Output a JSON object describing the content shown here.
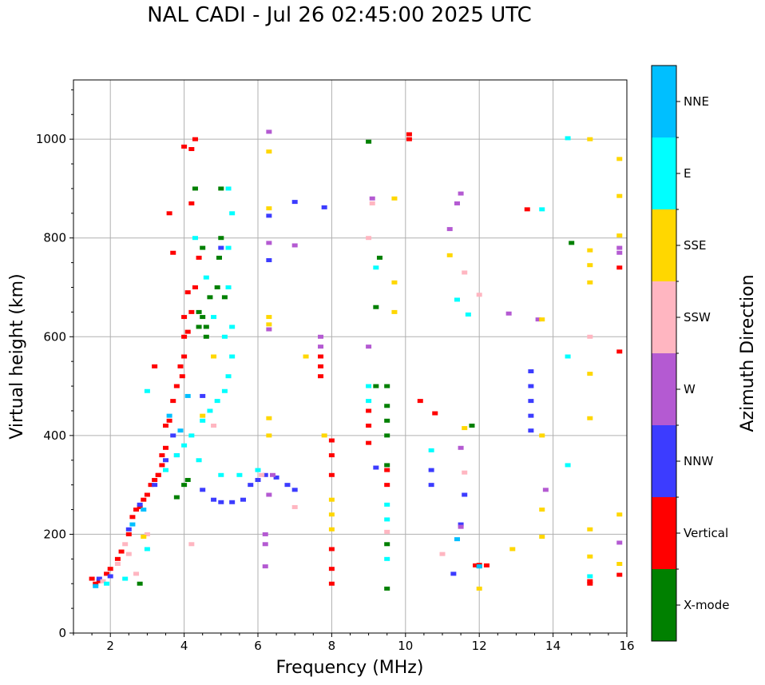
{
  "chart_data": {
    "type": "scatter",
    "title": "NAL CADI - Jul 26 02:45:00 2025 UTC",
    "xlabel": "Frequency (MHz)",
    "ylabel": "Virtual height (km)",
    "xlim": [
      1,
      16
    ],
    "ylim": [
      0,
      1120
    ],
    "xticks": [
      2,
      4,
      6,
      8,
      10,
      12,
      14,
      16
    ],
    "yticks": [
      0,
      200,
      400,
      600,
      800,
      1000
    ],
    "grid": true,
    "colorbar": {
      "label": "Azimuth Direction",
      "categories": [
        {
          "name": "X-mode",
          "color": "#008000"
        },
        {
          "name": "Vertical",
          "color": "#ff0000"
        },
        {
          "name": "NNW",
          "color": "#3c3cff"
        },
        {
          "name": "W",
          "color": "#b45ad2"
        },
        {
          "name": "SSW",
          "color": "#ffb6c1"
        },
        {
          "name": "SSE",
          "color": "#ffd700"
        },
        {
          "name": "E",
          "color": "#00ffff"
        },
        {
          "name": "NNE",
          "color": "#00bfff"
        }
      ]
    },
    "series": [
      {
        "name": "Vertical",
        "points": [
          [
            1.5,
            110
          ],
          [
            1.6,
            100
          ],
          [
            1.7,
            105
          ],
          [
            1.9,
            120
          ],
          [
            2.0,
            130
          ],
          [
            2.2,
            150
          ],
          [
            2.3,
            165
          ],
          [
            2.5,
            200
          ],
          [
            2.6,
            235
          ],
          [
            2.7,
            250
          ],
          [
            2.8,
            255
          ],
          [
            2.9,
            270
          ],
          [
            3.0,
            280
          ],
          [
            3.1,
            300
          ],
          [
            3.2,
            310
          ],
          [
            3.3,
            320
          ],
          [
            3.4,
            340
          ],
          [
            3.5,
            375
          ],
          [
            3.5,
            420
          ],
          [
            3.6,
            430
          ],
          [
            3.7,
            470
          ],
          [
            3.8,
            500
          ],
          [
            3.9,
            540
          ],
          [
            4.0,
            560
          ],
          [
            4.0,
            640
          ],
          [
            4.1,
            690
          ],
          [
            4.2,
            650
          ],
          [
            4.1,
            610
          ],
          [
            4.3,
            700
          ],
          [
            4.4,
            760
          ],
          [
            4.0,
            600
          ],
          [
            3.95,
            520
          ],
          [
            4.2,
            980
          ],
          [
            4.3,
            1000
          ],
          [
            4.2,
            870
          ],
          [
            3.6,
            850
          ],
          [
            3.7,
            770
          ],
          [
            3.3,
            320
          ],
          [
            3.4,
            360
          ],
          [
            3.2,
            540
          ],
          [
            8.0,
            100
          ],
          [
            8.0,
            130
          ],
          [
            8.0,
            170
          ],
          [
            8.0,
            320
          ],
          [
            8.0,
            360
          ],
          [
            8.0,
            390
          ],
          [
            7.7,
            520
          ],
          [
            7.7,
            560
          ],
          [
            7.7,
            540
          ],
          [
            9.0,
            385
          ],
          [
            9.0,
            420
          ],
          [
            9.0,
            450
          ],
          [
            9.5,
            300
          ],
          [
            9.5,
            330
          ],
          [
            10.1,
            1000
          ],
          [
            10.1,
            1010
          ],
          [
            10.4,
            470
          ],
          [
            10.8,
            445
          ],
          [
            12.0,
            138
          ],
          [
            11.9,
            137
          ],
          [
            12.2,
            137
          ],
          [
            13.3,
            858
          ],
          [
            15.0,
            100
          ],
          [
            15.0,
            105
          ],
          [
            15.8,
            118
          ],
          [
            15.8,
            570
          ],
          [
            15.8,
            740
          ],
          [
            4.0,
            985
          ]
        ]
      },
      {
        "name": "X-mode",
        "points": [
          [
            2.8,
            100
          ],
          [
            3.8,
            275
          ],
          [
            4.1,
            310
          ],
          [
            4.5,
            640
          ],
          [
            4.6,
            620
          ],
          [
            4.4,
            650
          ],
          [
            4.7,
            680
          ],
          [
            4.9,
            700
          ],
          [
            4.95,
            760
          ],
          [
            5.0,
            800
          ],
          [
            4.5,
            780
          ],
          [
            4.3,
            900
          ],
          [
            4.0,
            300
          ],
          [
            5.0,
            900
          ],
          [
            9.5,
            90
          ],
          [
            9.5,
            180
          ],
          [
            9.5,
            340
          ],
          [
            9.5,
            400
          ],
          [
            9.5,
            430
          ],
          [
            9.5,
            460
          ],
          [
            9.5,
            500
          ],
          [
            9.2,
            500
          ],
          [
            9.2,
            660
          ],
          [
            9.0,
            995
          ],
          [
            9.3,
            760
          ],
          [
            11.8,
            420
          ],
          [
            12.0,
            135
          ],
          [
            14.5,
            790
          ],
          [
            4.4,
            620
          ],
          [
            4.6,
            600
          ],
          [
            5.1,
            680
          ]
        ]
      },
      {
        "name": "NNW",
        "points": [
          [
            1.7,
            110
          ],
          [
            2.0,
            115
          ],
          [
            2.5,
            210
          ],
          [
            2.8,
            260
          ],
          [
            3.2,
            300
          ],
          [
            3.5,
            350
          ],
          [
            3.7,
            400
          ],
          [
            3.8,
            360
          ],
          [
            4.5,
            290
          ],
          [
            4.8,
            270
          ],
          [
            5.0,
            265
          ],
          [
            5.3,
            265
          ],
          [
            5.6,
            270
          ],
          [
            5.8,
            300
          ],
          [
            6.0,
            310
          ],
          [
            6.2,
            320
          ],
          [
            6.5,
            315
          ],
          [
            6.8,
            300
          ],
          [
            7.0,
            290
          ],
          [
            6.3,
            845
          ],
          [
            6.3,
            755
          ],
          [
            7.0,
            873
          ],
          [
            7.8,
            862
          ],
          [
            9.2,
            335
          ],
          [
            10.7,
            300
          ],
          [
            10.7,
            330
          ],
          [
            11.3,
            120
          ],
          [
            11.5,
            220
          ],
          [
            11.6,
            280
          ],
          [
            13.4,
            410
          ],
          [
            13.4,
            440
          ],
          [
            13.4,
            470
          ],
          [
            13.4,
            500
          ],
          [
            13.4,
            530
          ],
          [
            5.0,
            780
          ],
          [
            4.5,
            480
          ]
        ]
      },
      {
        "name": "W",
        "points": [
          [
            6.2,
            180
          ],
          [
            6.2,
            200
          ],
          [
            6.2,
            135
          ],
          [
            6.3,
            280
          ],
          [
            6.4,
            320
          ],
          [
            6.3,
            615
          ],
          [
            6.3,
            790
          ],
          [
            7.0,
            785
          ],
          [
            7.7,
            580
          ],
          [
            7.7,
            600
          ],
          [
            9.0,
            580
          ],
          [
            9.1,
            880
          ],
          [
            11.4,
            870
          ],
          [
            11.5,
            890
          ],
          [
            11.5,
            375
          ],
          [
            11.5,
            215
          ],
          [
            12.8,
            647
          ],
          [
            13.6,
            635
          ],
          [
            13.8,
            290
          ],
          [
            15.8,
            770
          ],
          [
            15.8,
            780
          ],
          [
            15.8,
            183
          ],
          [
            6.3,
            1015
          ],
          [
            11.2,
            818
          ]
        ]
      },
      {
        "name": "SSW",
        "points": [
          [
            1.8,
            105
          ],
          [
            2.2,
            140
          ],
          [
            2.4,
            180
          ],
          [
            2.7,
            120
          ],
          [
            3.0,
            200
          ],
          [
            2.5,
            160
          ],
          [
            9.0,
            800
          ],
          [
            9.1,
            870
          ],
          [
            9.5,
            205
          ],
          [
            11.0,
            160
          ],
          [
            11.6,
            730
          ],
          [
            11.6,
            325
          ],
          [
            12.0,
            685
          ],
          [
            15.0,
            600
          ],
          [
            7.0,
            255
          ],
          [
            6.1,
            320
          ],
          [
            4.8,
            420
          ],
          [
            4.2,
            180
          ]
        ]
      },
      {
        "name": "SSE",
        "points": [
          [
            2.9,
            195
          ],
          [
            6.3,
            975
          ],
          [
            6.3,
            860
          ],
          [
            6.3,
            625
          ],
          [
            6.3,
            640
          ],
          [
            6.3,
            435
          ],
          [
            6.3,
            400
          ],
          [
            7.3,
            560
          ],
          [
            7.8,
            400
          ],
          [
            8.0,
            240
          ],
          [
            8.0,
            270
          ],
          [
            8.0,
            210
          ],
          [
            9.7,
            880
          ],
          [
            9.7,
            710
          ],
          [
            9.7,
            650
          ],
          [
            11.2,
            765
          ],
          [
            11.6,
            415
          ],
          [
            12.0,
            90
          ],
          [
            12.9,
            170
          ],
          [
            13.7,
            195
          ],
          [
            13.7,
            250
          ],
          [
            13.7,
            400
          ],
          [
            13.7,
            635
          ],
          [
            15.0,
            1000
          ],
          [
            15.0,
            775
          ],
          [
            15.0,
            745
          ],
          [
            15.0,
            710
          ],
          [
            15.0,
            525
          ],
          [
            15.0,
            435
          ],
          [
            15.0,
            210
          ],
          [
            15.0,
            155
          ],
          [
            15.8,
            960
          ],
          [
            15.8,
            885
          ],
          [
            15.8,
            805
          ],
          [
            15.8,
            240
          ],
          [
            15.8,
            140
          ],
          [
            4.5,
            440
          ],
          [
            4.8,
            560
          ]
        ]
      },
      {
        "name": "E",
        "points": [
          [
            1.9,
            100
          ],
          [
            2.4,
            110
          ],
          [
            3.0,
            170
          ],
          [
            3.5,
            330
          ],
          [
            3.8,
            360
          ],
          [
            4.0,
            380
          ],
          [
            4.2,
            400
          ],
          [
            4.5,
            430
          ],
          [
            4.7,
            450
          ],
          [
            4.9,
            470
          ],
          [
            5.1,
            490
          ],
          [
            5.2,
            520
          ],
          [
            5.3,
            560
          ],
          [
            5.3,
            620
          ],
          [
            5.2,
            700
          ],
          [
            5.2,
            780
          ],
          [
            5.3,
            850
          ],
          [
            5.2,
            900
          ],
          [
            4.6,
            720
          ],
          [
            4.8,
            640
          ],
          [
            5.1,
            600
          ],
          [
            4.3,
            800
          ],
          [
            5.0,
            320
          ],
          [
            5.5,
            320
          ],
          [
            6.0,
            330
          ],
          [
            9.0,
            470
          ],
          [
            9.0,
            500
          ],
          [
            9.2,
            740
          ],
          [
            9.5,
            230
          ],
          [
            9.5,
            260
          ],
          [
            9.5,
            150
          ],
          [
            10.7,
            370
          ],
          [
            11.4,
            675
          ],
          [
            11.7,
            645
          ],
          [
            13.7,
            858
          ],
          [
            14.4,
            1002
          ],
          [
            14.4,
            560
          ],
          [
            14.4,
            340
          ],
          [
            15.0,
            115
          ],
          [
            3.0,
            490
          ],
          [
            4.4,
            350
          ]
        ]
      },
      {
        "name": "NNE",
        "points": [
          [
            1.6,
            95
          ],
          [
            2.6,
            220
          ],
          [
            2.9,
            250
          ],
          [
            3.6,
            440
          ],
          [
            3.9,
            410
          ],
          [
            4.1,
            480
          ],
          [
            11.4,
            190
          ],
          [
            12.0,
            135
          ]
        ]
      }
    ]
  }
}
